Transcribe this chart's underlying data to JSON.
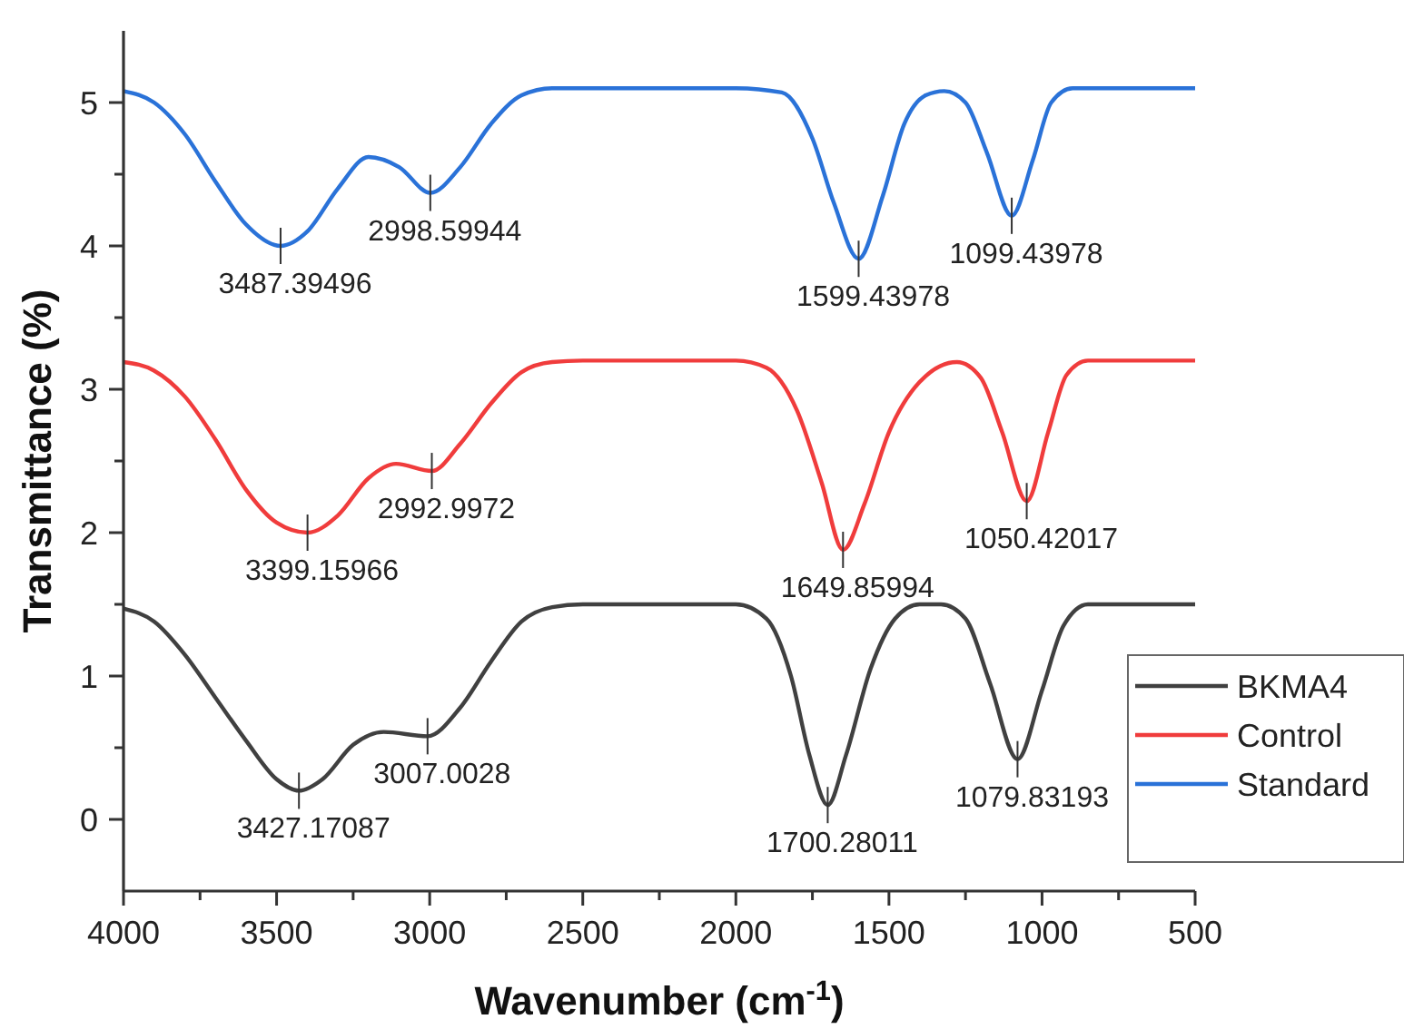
{
  "chart_data": {
    "type": "line",
    "xlabel": "Wavenumber (cm$^{-1}$)",
    "ylabel": "Transmittance (%)",
    "xlim": [
      4000,
      500
    ],
    "ylim": [
      -0.5,
      5.5
    ],
    "xticks": [
      4000,
      {
        "value": 3750,
        "label": null
      },
      3500,
      {
        "value": 3250,
        "label": null
      },
      3000,
      {
        "value": 2750,
        "label": null
      },
      2500,
      {
        "value": 2250,
        "label": null
      },
      2000,
      {
        "value": 1750,
        "label": null
      },
      1500,
      {
        "value": 1250,
        "label": null
      },
      1000,
      {
        "value": 750,
        "label": null
      },
      500
    ],
    "yticks": [
      0,
      {
        "value": 0.5,
        "label": null
      },
      1,
      {
        "value": 1.5,
        "label": null
      },
      2,
      {
        "value": 2.5,
        "label": null
      },
      3,
      {
        "value": 3.5,
        "label": null
      },
      4,
      {
        "value": 4.5,
        "label": null
      },
      5
    ],
    "legend": "right",
    "grid": false,
    "line_style": "solid",
    "marker": "none",
    "series": [
      {
        "name": "BKMA4",
        "color": "#404040",
        "x": [
          4000,
          3900,
          3800,
          3700,
          3600,
          3500,
          3427,
          3350,
          3250,
          3150,
          3007,
          2900,
          2800,
          2700,
          2600,
          2500,
          2000,
          1900,
          1820,
          1760,
          1700,
          1640,
          1560,
          1480,
          1400,
          1330,
          1250,
          1170,
          1080,
          1000,
          930,
          850,
          500
        ],
        "values": [
          1.47,
          1.38,
          1.15,
          0.85,
          0.55,
          0.28,
          0.2,
          0.28,
          0.52,
          0.61,
          0.58,
          0.78,
          1.1,
          1.38,
          1.48,
          1.5,
          1.5,
          1.4,
          1.0,
          0.45,
          0.1,
          0.45,
          1.05,
          1.4,
          1.5,
          1.5,
          1.4,
          0.95,
          0.42,
          0.9,
          1.35,
          1.5,
          1.5
        ]
      },
      {
        "name": "Control",
        "color": "#f03c3c",
        "x": [
          4000,
          3900,
          3800,
          3700,
          3600,
          3500,
          3399,
          3300,
          3200,
          3110,
          2993,
          2900,
          2800,
          2700,
          2600,
          2500,
          2000,
          1900,
          1800,
          1720,
          1650,
          1580,
          1500,
          1400,
          1278,
          1200,
          1130,
          1050,
          980,
          920,
          850,
          500
        ],
        "values": [
          3.19,
          3.13,
          2.95,
          2.65,
          2.3,
          2.07,
          2.0,
          2.12,
          2.38,
          2.48,
          2.43,
          2.62,
          2.9,
          3.12,
          3.19,
          3.2,
          3.2,
          3.15,
          2.85,
          2.35,
          1.88,
          2.2,
          2.7,
          3.05,
          3.19,
          3.08,
          2.7,
          2.22,
          2.7,
          3.1,
          3.2,
          3.2
        ]
      },
      {
        "name": "Standard",
        "color": "#2a72d8",
        "x": [
          4000,
          3900,
          3800,
          3700,
          3600,
          3487,
          3400,
          3300,
          3200,
          3100,
          2998,
          2900,
          2800,
          2700,
          2600,
          2000,
          1850,
          1750,
          1680,
          1599,
          1520,
          1450,
          1380,
          1319,
          1250,
          1180,
          1099,
          1030,
          970,
          900,
          500
        ],
        "values": [
          5.08,
          5.0,
          4.78,
          4.45,
          4.15,
          4.0,
          4.1,
          4.4,
          4.62,
          4.55,
          4.37,
          4.55,
          4.85,
          5.05,
          5.1,
          5.1,
          5.07,
          4.75,
          4.3,
          3.91,
          4.35,
          4.85,
          5.05,
          5.08,
          5.0,
          4.65,
          4.21,
          4.6,
          5.0,
          5.1,
          5.1
        ]
      }
    ],
    "annotations": [
      {
        "text": "3487.39496",
        "x": 3487,
        "y": 4.0
      },
      {
        "text": "2998.59944",
        "x": 2998,
        "y": 4.37
      },
      {
        "text": "1599.43978",
        "x": 1599,
        "y": 3.91
      },
      {
        "text": "1099.43978",
        "x": 1099,
        "y": 4.21
      },
      {
        "text": "3399.15966",
        "x": 3399,
        "y": 2.0
      },
      {
        "text": "2992.9972",
        "x": 2993,
        "y": 2.43
      },
      {
        "text": "1649.85994",
        "x": 1650,
        "y": 1.88
      },
      {
        "text": "1050.42017",
        "x": 1050,
        "y": 2.22
      },
      {
        "text": "3427.17087",
        "x": 3427,
        "y": 0.2
      },
      {
        "text": "3007.0028",
        "x": 3007,
        "y": 0.58
      },
      {
        "text": "1700.28011",
        "x": 1700,
        "y": 0.1
      },
      {
        "text": "1079.83193",
        "x": 1080,
        "y": 0.42
      }
    ]
  }
}
